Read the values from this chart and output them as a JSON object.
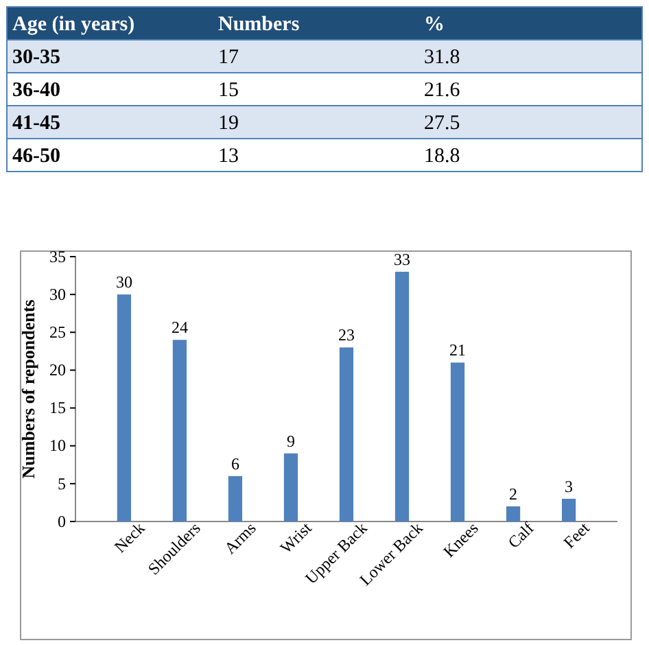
{
  "chart_data": [
    {
      "type": "heatmap",
      "data_labels": true,
      "ylabel": "Age (in years)",
      "categories": [
        "Numbers",
        "%"
      ],
      "y_categories": [
        "30-35",
        "36-40",
        "41-45",
        "46-50"
      ],
      "cells": [
        [
          17,
          31.8
        ],
        [
          15,
          21.6
        ],
        [
          19,
          27.5
        ],
        [
          13,
          18.8
        ]
      ]
    },
    {
      "type": "bar",
      "categories": [
        "Neck",
        "Shoulders",
        "Arms",
        "Wrist",
        "Upper Back",
        "Lower Back",
        "Knees",
        "Calf",
        "Feet"
      ],
      "values": [
        30,
        24,
        6,
        9,
        23,
        33,
        21,
        2,
        3
      ],
      "color": "#4f81bd",
      "ylabel": "Numbers of repondents",
      "ylim": [
        0,
        35
      ],
      "yticks": [
        0,
        5,
        10,
        15,
        20,
        25,
        30,
        35
      ],
      "data_labels": true
    }
  ]
}
